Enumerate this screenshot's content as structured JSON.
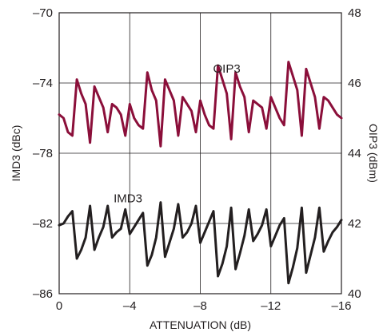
{
  "chart_data": {
    "type": "line",
    "title": "",
    "xlabel": "ATTENUATION (dB)",
    "ylabel_left": "IMD3 (dBc)",
    "ylabel_right": "OIP3 (dBm)",
    "x_range": [
      0,
      -16
    ],
    "x_ticks": [
      0,
      -4,
      -8,
      -12,
      -16
    ],
    "x_tick_labels": [
      "0",
      "–4",
      "–8",
      "–12",
      "–16"
    ],
    "y_left_range": [
      -86,
      -70
    ],
    "y_left_ticks": [
      -70,
      -74,
      -78,
      -82,
      -86
    ],
    "y_left_tick_labels": [
      "–70",
      "–74",
      "–78",
      "–82",
      "–86"
    ],
    "y_right_range": [
      40,
      48
    ],
    "y_right_ticks": [
      48,
      46,
      44,
      42,
      40
    ],
    "y_right_tick_labels": [
      "48",
      "46",
      "44",
      "42",
      "40"
    ],
    "grid": true,
    "series": [
      {
        "name": "OIP3",
        "axis": "right",
        "color": "#8b0f3a",
        "label_at": [
          -9.5,
          46.3
        ],
        "x": [
          0,
          -0.25,
          -0.5,
          -0.75,
          -1.0,
          -1.25,
          -1.5,
          -1.75,
          -2.0,
          -2.25,
          -2.5,
          -2.75,
          -3.0,
          -3.25,
          -3.5,
          -3.75,
          -4.0,
          -4.25,
          -4.5,
          -4.75,
          -5.0,
          -5.25,
          -5.5,
          -5.75,
          -6.0,
          -6.25,
          -6.5,
          -6.75,
          -7.0,
          -7.25,
          -7.5,
          -7.75,
          -8.0,
          -8.25,
          -8.5,
          -8.75,
          -9.0,
          -9.25,
          -9.5,
          -9.75,
          -10.0,
          -10.25,
          -10.5,
          -10.75,
          -11.0,
          -11.25,
          -11.5,
          -11.75,
          -12.0,
          -12.25,
          -12.5,
          -12.75,
          -13.0,
          -13.25,
          -13.5,
          -13.75,
          -14.0,
          -14.25,
          -14.5,
          -14.75,
          -15.0,
          -15.25,
          -15.5,
          -15.75,
          -16.0
        ],
        "values": [
          45.1,
          45.0,
          44.6,
          44.5,
          46.1,
          45.7,
          45.4,
          44.3,
          45.9,
          45.6,
          45.3,
          44.6,
          45.4,
          45.3,
          45.1,
          44.5,
          45.4,
          45.0,
          44.8,
          44.7,
          46.3,
          45.8,
          45.5,
          44.2,
          46.1,
          45.8,
          45.5,
          44.5,
          45.6,
          45.4,
          45.2,
          44.6,
          45.5,
          45.1,
          44.8,
          44.7,
          46.5,
          46.1,
          45.7,
          44.4,
          46.3,
          45.9,
          45.6,
          44.6,
          45.5,
          45.4,
          45.3,
          44.7,
          45.6,
          45.3,
          45.0,
          44.8,
          46.6,
          46.2,
          45.8,
          44.5,
          46.4,
          46.0,
          45.6,
          44.7,
          45.6,
          45.5,
          45.3,
          45.1,
          45.0
        ]
      },
      {
        "name": "IMD3",
        "axis": "left",
        "color": "#231f20",
        "label_at": [
          -3.9,
          -80.8
        ],
        "x": [
          0,
          -0.25,
          -0.5,
          -0.75,
          -1.0,
          -1.25,
          -1.5,
          -1.75,
          -2.0,
          -2.25,
          -2.5,
          -2.75,
          -3.0,
          -3.25,
          -3.5,
          -3.75,
          -4.0,
          -4.25,
          -4.5,
          -4.75,
          -5.0,
          -5.25,
          -5.5,
          -5.75,
          -6.0,
          -6.25,
          -6.5,
          -6.75,
          -7.0,
          -7.25,
          -7.5,
          -7.75,
          -8.0,
          -8.25,
          -8.5,
          -8.75,
          -9.0,
          -9.25,
          -9.5,
          -9.75,
          -10.0,
          -10.25,
          -10.5,
          -10.75,
          -11.0,
          -11.25,
          -11.5,
          -11.75,
          -12.0,
          -12.25,
          -12.5,
          -12.75,
          -13.0,
          -13.25,
          -13.5,
          -13.75,
          -14.0,
          -14.25,
          -14.5,
          -14.75,
          -15.0,
          -15.25,
          -15.5,
          -15.75,
          -16.0
        ],
        "values": [
          -82.1,
          -82.0,
          -81.6,
          -81.3,
          -84.0,
          -83.5,
          -82.8,
          -81.0,
          -83.5,
          -82.8,
          -82.2,
          -81.0,
          -82.8,
          -82.5,
          -82.3,
          -81.2,
          -82.6,
          -82.2,
          -81.8,
          -81.4,
          -84.4,
          -83.8,
          -82.8,
          -80.8,
          -83.9,
          -83.1,
          -82.3,
          -80.9,
          -82.8,
          -82.5,
          -82.0,
          -81.0,
          -83.1,
          -82.5,
          -81.9,
          -81.3,
          -85.0,
          -84.3,
          -83.3,
          -81.1,
          -84.6,
          -83.7,
          -82.7,
          -81.2,
          -83.0,
          -82.6,
          -82.1,
          -81.2,
          -83.3,
          -82.7,
          -82.1,
          -81.7,
          -85.4,
          -84.5,
          -83.4,
          -81.1,
          -84.8,
          -83.8,
          -82.8,
          -81.1,
          -83.6,
          -83.0,
          -82.5,
          -82.2,
          -81.8
        ]
      }
    ]
  }
}
